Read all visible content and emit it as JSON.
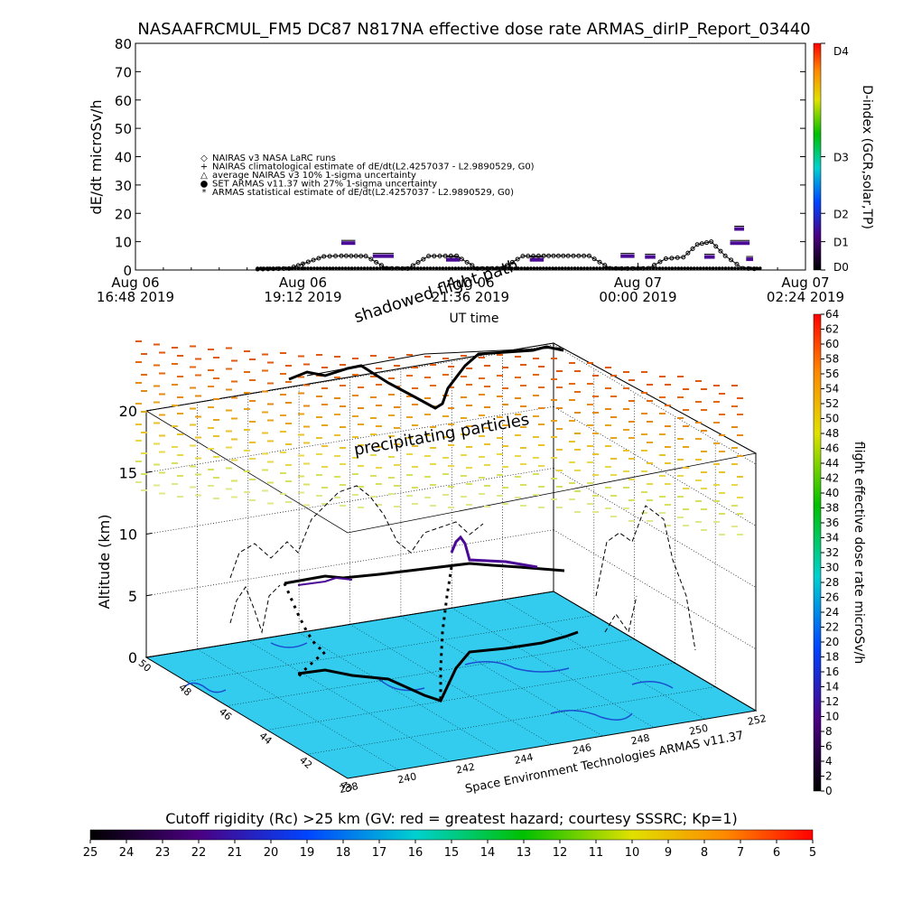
{
  "title": "NASAAFRCMUL_FM5 DC87 N817NA effective dose rate ARMAS_dirIP_Report_03440",
  "chart_data": [
    {
      "type": "scatter",
      "ylabel": "dE/dt microSv/h",
      "xlabel": "UT time",
      "ylim": [
        0,
        80
      ],
      "yticks": [
        "0",
        "10",
        "20",
        "30",
        "40",
        "50",
        "60",
        "70",
        "80"
      ],
      "xticks": [
        {
          "l1": "Aug 06",
          "l2": "16:48 2019"
        },
        {
          "l1": "Aug 06",
          "l2": "19:12 2019"
        },
        {
          "l1": "Aug 06",
          "l2": "21:36 2019"
        },
        {
          "l1": "Aug 07",
          "l2": "00:00 2019"
        },
        {
          "l1": "Aug 07",
          "l2": "02:24 2019"
        }
      ],
      "xrange_hours": [
        0,
        9.6
      ],
      "legend": [
        "NAIRAS v3 NASA LaRC runs",
        "NAIRAS climatological estimate of dE/dt(L2.4257037 - L2.9890529, G0)",
        "average NAIRAS v3 10% 1-sigma uncertainty",
        "SET ARMAS v11.37 with 27% 1-sigma uncertainty",
        "ARMAS statistical estimate of dE/dt(L2.4257037 - L2.9890529, G0)"
      ],
      "baseline": {
        "start_hours": 1.75,
        "end_hours": 8.95,
        "value": 0.3
      },
      "climatology_hours": [
        1.75,
        2.2,
        2.4,
        2.7,
        2.95,
        3.3,
        3.6,
        3.9,
        4.2,
        4.6,
        4.9,
        5.25,
        5.55,
        5.85,
        6.2,
        6.5,
        6.8,
        7.05,
        7.35,
        7.6,
        7.85,
        8.05,
        8.25,
        8.45,
        8.7,
        8.95
      ],
      "climatology_values": [
        0.3,
        0.5,
        2.2,
        4.8,
        5.0,
        4.9,
        0.6,
        0.5,
        4.9,
        5.0,
        0.5,
        0.6,
        4.9,
        5.0,
        5.0,
        5.0,
        0.6,
        0.5,
        0.6,
        4.0,
        4.5,
        9.0,
        10.0,
        5.0,
        0.6,
        0.3
      ],
      "armas_segments": [
        {
          "x0": 2.95,
          "x1": 3.15,
          "y": 9.5
        },
        {
          "x0": 3.4,
          "x1": 3.7,
          "y": 4.9
        },
        {
          "x0": 4.45,
          "x1": 4.65,
          "y": 3.6
        },
        {
          "x0": 5.65,
          "x1": 5.85,
          "y": 3.6
        },
        {
          "x0": 6.95,
          "x1": 7.15,
          "y": 4.9
        },
        {
          "x0": 7.3,
          "x1": 7.45,
          "y": 4.6
        },
        {
          "x0": 8.15,
          "x1": 8.3,
          "y": 4.6
        },
        {
          "x0": 8.58,
          "x1": 8.72,
          "y": 14.5
        },
        {
          "x0": 8.52,
          "x1": 8.8,
          "y": 9.5
        },
        {
          "x0": 8.75,
          "x1": 8.85,
          "y": 3.8
        }
      ],
      "d_index": {
        "ticks": [
          {
            "label": "D0",
            "value": 0
          },
          {
            "label": "D1",
            "value": 10
          },
          {
            "label": "D2",
            "value": 20
          },
          {
            "label": "D3",
            "value": 40
          },
          {
            "label": "D4",
            "value": 80
          }
        ],
        "label": "D-index (GCR,solar,TP)"
      }
    },
    {
      "type": "scatter",
      "zlabel": "Altitude (km)",
      "zticks": [
        "0",
        "5",
        "10",
        "15",
        "20"
      ],
      "lon_ticks": [
        "238",
        "240",
        "242",
        "244",
        "246",
        "248",
        "250",
        "252"
      ],
      "lat_ticks": [
        "40",
        "42",
        "44",
        "46",
        "48",
        "50"
      ],
      "annotations": [
        "shadowed flight path",
        "precipitating particles"
      ],
      "credit": "Space Environment Technologies ARMAS v11.37",
      "dose_colorbar": {
        "label": "flight effective dose rate microSv/h",
        "min": 0,
        "max": 64,
        "step": 2
      }
    }
  ],
  "cutoff_colorbar": {
    "title": "Cutoff rigidity (Rc) >25 km (GV: red = greatest hazard; courtesy SSSRC; Kp=1)",
    "labels": [
      "25",
      "24",
      "23",
      "22",
      "21",
      "20",
      "19",
      "18",
      "17",
      "16",
      "15",
      "14",
      "13",
      "12",
      "11",
      "10",
      "9",
      "8",
      "7",
      "6",
      "5"
    ]
  },
  "colors": {
    "ground": "#33ccee",
    "armas": "#4b0a96",
    "line": "#000000"
  }
}
